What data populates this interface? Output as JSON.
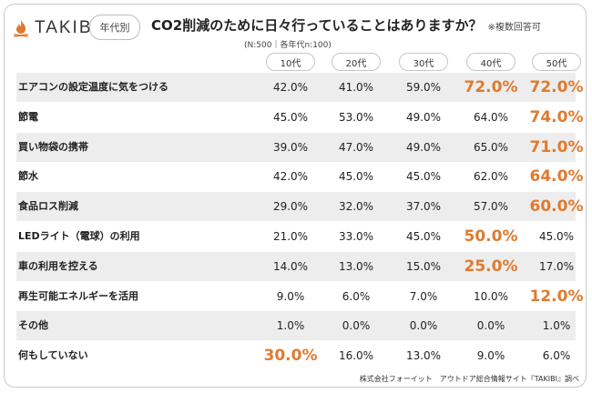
{
  "brand": {
    "name": "TAKIBI",
    "icon": "campfire-icon",
    "icon_color": "#e07a2e"
  },
  "segment_label": "年代別",
  "title": "CO2削減のために日々行っていることはありますか？",
  "title_note": "※複数回答可",
  "sample_note": "(N:500｜各年代n:100)",
  "source": "株式会社フォーイット　アウトドア総合情報サイト『TAKIBI』調べ",
  "colors": {
    "highlight": "#e07a2e",
    "row_shade": "#ededed"
  },
  "chart_data": {
    "type": "table",
    "unit": "%",
    "columns": [
      "10代",
      "20代",
      "30代",
      "40代",
      "50代"
    ],
    "rows": [
      {
        "label": "エアコンの設定温度に気をつける",
        "values": [
          "42.0%",
          "41.0%",
          "59.0%",
          "72.0%",
          "72.0%"
        ],
        "highlight": [
          3,
          4
        ]
      },
      {
        "label": "節電",
        "values": [
          "45.0%",
          "53.0%",
          "49.0%",
          "64.0%",
          "74.0%"
        ],
        "highlight": [
          4
        ]
      },
      {
        "label": "買い物袋の携帯",
        "values": [
          "39.0%",
          "47.0%",
          "49.0%",
          "65.0%",
          "71.0%"
        ],
        "highlight": [
          4
        ]
      },
      {
        "label": "節水",
        "values": [
          "42.0%",
          "45.0%",
          "45.0%",
          "62.0%",
          "64.0%"
        ],
        "highlight": [
          4
        ]
      },
      {
        "label": "食品ロス削減",
        "values": [
          "29.0%",
          "32.0%",
          "37.0%",
          "57.0%",
          "60.0%"
        ],
        "highlight": [
          4
        ]
      },
      {
        "label": "LEDライト（電球）の利用",
        "values": [
          "21.0%",
          "33.0%",
          "45.0%",
          "50.0%",
          "45.0%"
        ],
        "highlight": [
          3
        ]
      },
      {
        "label": "車の利用を控える",
        "values": [
          "14.0%",
          "13.0%",
          "15.0%",
          "25.0%",
          "17.0%"
        ],
        "highlight": [
          3
        ]
      },
      {
        "label": "再生可能エネルギーを活用",
        "values": [
          "9.0%",
          "6.0%",
          "7.0%",
          "10.0%",
          "12.0%"
        ],
        "highlight": [
          4
        ]
      },
      {
        "label": "その他",
        "values": [
          "1.0%",
          "0.0%",
          "0.0%",
          "0.0%",
          "1.0%"
        ],
        "highlight": []
      },
      {
        "label": "何もしていない",
        "values": [
          "30.0%",
          "16.0%",
          "13.0%",
          "9.0%",
          "6.0%"
        ],
        "highlight": [
          0
        ]
      }
    ]
  }
}
